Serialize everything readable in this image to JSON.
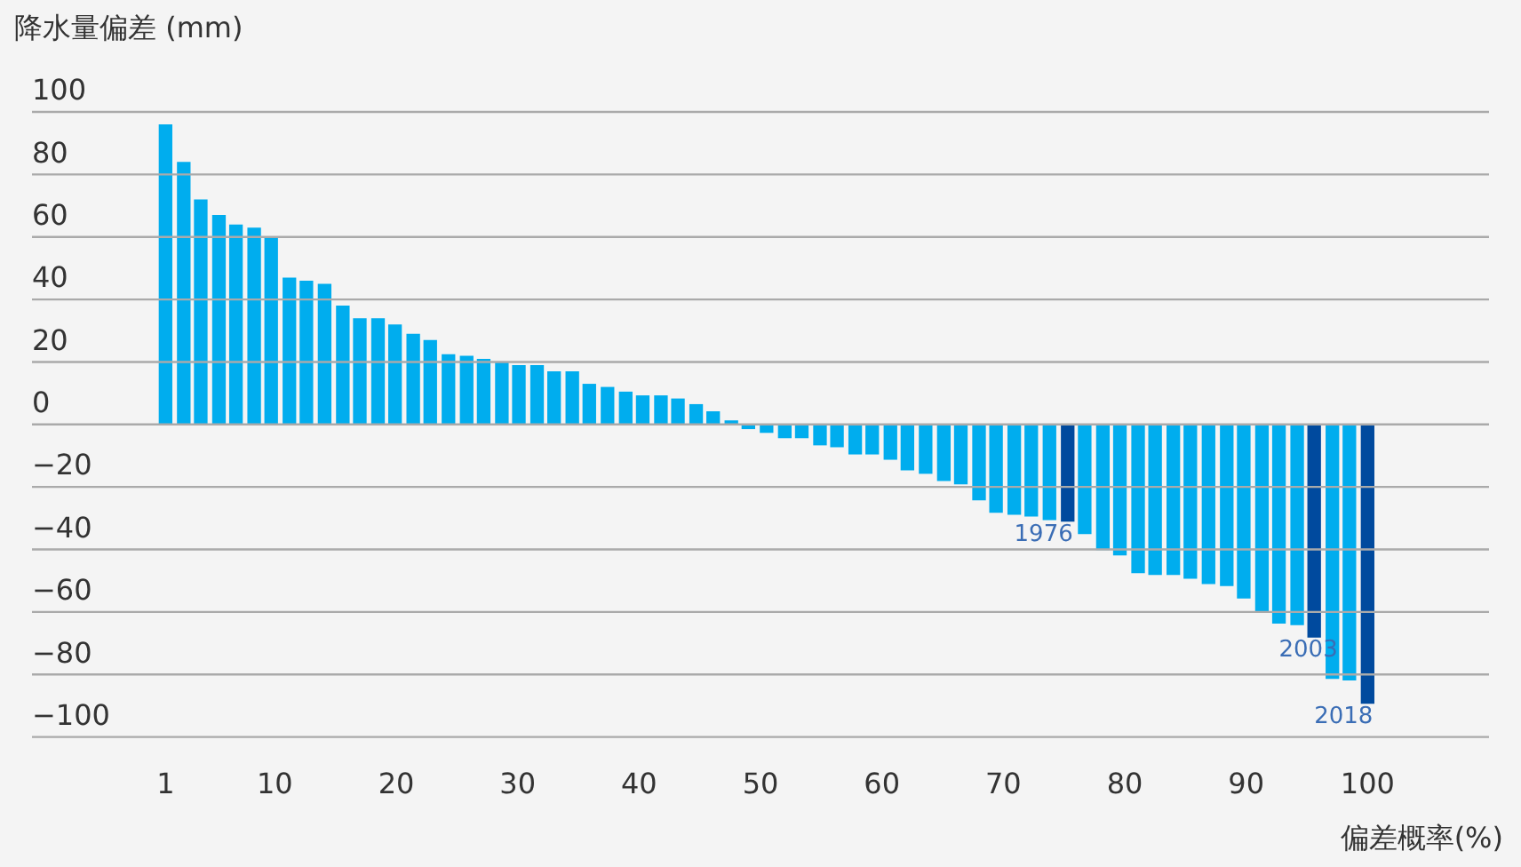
{
  "chart_data": {
    "type": "bar",
    "ylabel": "降水量偏差 (mm)",
    "xlabel": "偏差概率(%)",
    "x": [
      1,
      2.5,
      3.9,
      5.4,
      6.8,
      8.3,
      9.7,
      11.2,
      12.6,
      14.1,
      15.6,
      17,
      18.5,
      19.9,
      21.4,
      22.8,
      24.3,
      25.8,
      27.2,
      28.7,
      30.1,
      31.6,
      33,
      34.5,
      35.9,
      37.4,
      38.9,
      40.3,
      41.8,
      43.2,
      44.7,
      46.1,
      47.6,
      49,
      50.5,
      52,
      53.4,
      54.9,
      56.3,
      57.8,
      59.2,
      60.7,
      62.1,
      63.6,
      65.1,
      66.5,
      68,
      69.4,
      70.9,
      72.3,
      73.8,
      75.3,
      76.7,
      78.2,
      79.6,
      81.1,
      82.5,
      84,
      85.4,
      86.9,
      88.4,
      89.8,
      91.3,
      92.7,
      94.2,
      95.6,
      97.1,
      98.5,
      100
    ],
    "values": [
      96,
      84,
      72,
      67,
      64,
      63,
      60,
      47,
      46,
      45,
      38,
      34,
      34,
      32,
      29,
      27,
      22.5,
      22,
      21,
      20,
      19,
      19,
      17,
      17,
      13,
      12,
      10.5,
      9.3,
      9.3,
      8.3,
      6.5,
      4.2,
      1.3,
      -1.5,
      -2.7,
      -4.4,
      -4.4,
      -6.7,
      -7.3,
      -9.6,
      -9.6,
      -11.3,
      -14.7,
      -15.8,
      -18.1,
      -19.2,
      -24.3,
      -28.3,
      -28.9,
      -29.5,
      -30.6,
      -31.1,
      -35.1,
      -40.2,
      -41.9,
      -47.6,
      -48.2,
      -48.2,
      -49.4,
      -51.1,
      -51.7,
      -55.7,
      -60.2,
      -63.7,
      -64.2,
      -68.2,
      -81.4,
      -81.9,
      -89.4
    ],
    "colors": [
      "#00adee",
      "#00adee",
      "#00adee",
      "#00adee",
      "#00adee",
      "#00adee",
      "#00adee",
      "#00adee",
      "#00adee",
      "#00adee",
      "#00adee",
      "#00adee",
      "#00adee",
      "#00adee",
      "#00adee",
      "#00adee",
      "#00adee",
      "#00adee",
      "#00adee",
      "#00adee",
      "#00adee",
      "#00adee",
      "#00adee",
      "#00adee",
      "#00adee",
      "#00adee",
      "#00adee",
      "#00adee",
      "#00adee",
      "#00adee",
      "#00adee",
      "#00adee",
      "#00adee",
      "#00adee",
      "#00adee",
      "#00adee",
      "#00adee",
      "#00adee",
      "#00adee",
      "#00adee",
      "#00adee",
      "#00adee",
      "#00adee",
      "#00adee",
      "#00adee",
      "#00adee",
      "#00adee",
      "#00adee",
      "#00adee",
      "#00adee",
      "#00adee",
      "#004a9e",
      "#00adee",
      "#00adee",
      "#00adee",
      "#00adee",
      "#00adee",
      "#00adee",
      "#00adee",
      "#00adee",
      "#00adee",
      "#00adee",
      "#00adee",
      "#00adee",
      "#00adee",
      "#004a9e",
      "#00adee",
      "#00adee",
      "#004a9e"
    ],
    "xlim": [
      -10,
      110
    ],
    "xticks": [
      1,
      10,
      20,
      30,
      40,
      50,
      60,
      70,
      80,
      90,
      100
    ],
    "ylim": [
      -100,
      100
    ],
    "yticks": [
      {
        "value": -100,
        "label": "−100"
      },
      {
        "value": -80,
        "label": "−80"
      },
      {
        "value": -60,
        "label": "−60"
      },
      {
        "value": -40,
        "label": "−40"
      },
      {
        "value": -20,
        "label": "−20"
      },
      0,
      20,
      40,
      60,
      80,
      100
    ],
    "grid": "y",
    "legend": false,
    "annotations": [
      {
        "text": "1976",
        "x": 75.3,
        "y": -31.1
      },
      {
        "text": "2003",
        "x": 97.1,
        "y": -68.2
      },
      {
        "text": "2018",
        "x": 100,
        "y": -89.4
      }
    ]
  }
}
